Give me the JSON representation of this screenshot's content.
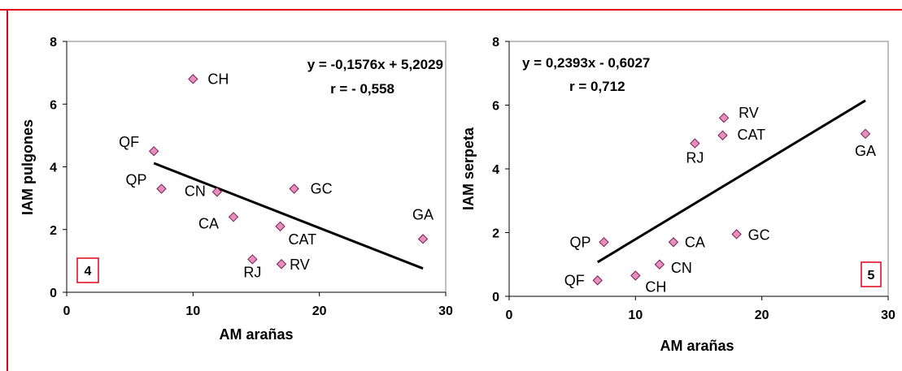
{
  "chart_data": [
    {
      "type": "scatter",
      "panel_label": "4",
      "xlabel": "AM arañas",
      "ylabel": "IAM pulgones",
      "xlim": [
        0,
        30
      ],
      "ylim": [
        0,
        8
      ],
      "xticks": [
        "0",
        "10",
        "20",
        "30"
      ],
      "yticks": [
        "0",
        "2",
        "4",
        "6",
        "8"
      ],
      "equation": "y = -0,1576x + 5,2029",
      "r_text": "r = - 0,558",
      "trendline": {
        "slope": -0.1576,
        "intercept": 5.2029,
        "x_range": [
          6.9,
          28.2
        ]
      },
      "marker_color": "#e58fbf",
      "points": [
        {
          "label": "CH",
          "x": 10.0,
          "y": 6.8
        },
        {
          "label": "QF",
          "x": 6.9,
          "y": 4.5
        },
        {
          "label": "QP",
          "x": 7.5,
          "y": 3.3
        },
        {
          "label": "CN",
          "x": 11.9,
          "y": 3.2
        },
        {
          "label": "GC",
          "x": 18.0,
          "y": 3.3
        },
        {
          "label": "CA",
          "x": 13.2,
          "y": 2.4
        },
        {
          "label": "CAT",
          "x": 16.9,
          "y": 2.1
        },
        {
          "label": "GA",
          "x": 28.2,
          "y": 1.7
        },
        {
          "label": "RJ",
          "x": 14.7,
          "y": 1.05
        },
        {
          "label": "RV",
          "x": 17.0,
          "y": 0.9
        }
      ]
    },
    {
      "type": "scatter",
      "panel_label": "5",
      "xlabel": "AM arañas",
      "ylabel": "IAM serpeta",
      "xlim": [
        0,
        30
      ],
      "ylim": [
        0,
        8
      ],
      "xticks": [
        "0",
        "10",
        "20",
        "30"
      ],
      "yticks": [
        "0",
        "2",
        "4",
        "6",
        "8"
      ],
      "equation": "y = 0,2393x - 0,6027",
      "r_text": "r = 0,712",
      "trendline": {
        "slope": 0.2393,
        "intercept": -0.6027,
        "x_range": [
          7.0,
          28.2
        ]
      },
      "marker_color": "#e58fbf",
      "points": [
        {
          "label": "RV",
          "x": 17.0,
          "y": 5.6
        },
        {
          "label": "RJ",
          "x": 14.7,
          "y": 4.8
        },
        {
          "label": "CAT",
          "x": 16.9,
          "y": 5.05
        },
        {
          "label": "GA",
          "x": 28.2,
          "y": 5.1
        },
        {
          "label": "QP",
          "x": 7.5,
          "y": 1.7
        },
        {
          "label": "CA",
          "x": 13.0,
          "y": 1.7
        },
        {
          "label": "GC",
          "x": 18.0,
          "y": 1.95
        },
        {
          "label": "CN",
          "x": 11.9,
          "y": 1.0
        },
        {
          "label": "CH",
          "x": 10.0,
          "y": 0.65
        },
        {
          "label": "QF",
          "x": 7.0,
          "y": 0.5
        }
      ]
    }
  ]
}
